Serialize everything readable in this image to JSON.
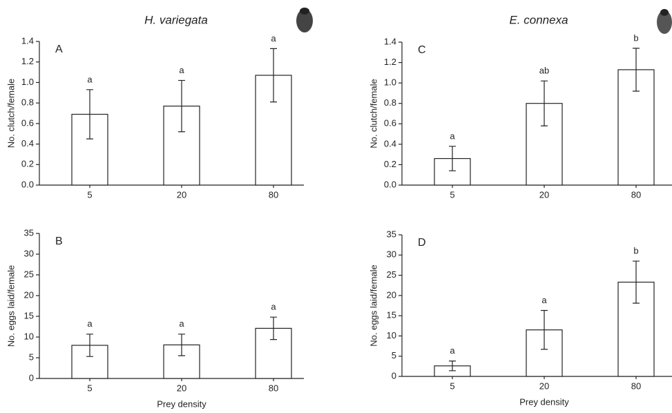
{
  "chart_data": [
    {
      "type": "bar",
      "panel": "A",
      "title": "H. variegata",
      "y_label": "No. clutch/female",
      "categories": [
        "5",
        "20",
        "80"
      ],
      "values": [
        0.69,
        0.77,
        1.07
      ],
      "errors": [
        0.24,
        0.25,
        0.26
      ],
      "annotations": [
        "a",
        "a",
        "a"
      ],
      "color": "#ffffff",
      "ylim": [
        0,
        1.4
      ],
      "yticks": [
        {
          "value": 0,
          "label": "0.0"
        },
        0.2,
        0.4,
        0.6,
        0.8,
        {
          "value": 1,
          "label": "1.0"
        },
        1.2,
        1.4
      ]
    },
    {
      "type": "bar",
      "panel": "B",
      "x_label": "Prey density",
      "y_label": "No. eggs laid/female",
      "categories": [
        "5",
        "20",
        "80"
      ],
      "values": [
        8.0,
        8.1,
        12.1
      ],
      "errors": [
        2.7,
        2.6,
        2.7
      ],
      "annotations": [
        "a",
        "a",
        "a"
      ],
      "color": "#ffffff",
      "ylim": [
        0,
        35
      ],
      "yticks": [
        0,
        5,
        10,
        15,
        20,
        25,
        30,
        35
      ]
    },
    {
      "type": "bar",
      "panel": "C",
      "title": "E. connexa",
      "y_label": "No. clutch/female",
      "categories": [
        "5",
        "20",
        "80"
      ],
      "values": [
        0.26,
        0.8,
        1.13
      ],
      "errors": [
        0.12,
        0.22,
        0.21
      ],
      "annotations": [
        "a",
        "ab",
        "b"
      ],
      "color": "#ffffff",
      "ylim": [
        0,
        1.4
      ],
      "yticks": [
        {
          "value": 0,
          "label": "0.0"
        },
        0.2,
        0.4,
        0.6,
        0.8,
        {
          "value": 1,
          "label": "1.0"
        },
        1.2,
        1.4
      ]
    },
    {
      "type": "bar",
      "panel": "D",
      "x_label": "Prey density",
      "y_label": "No. eggs laid/female",
      "categories": [
        "5",
        "20",
        "80"
      ],
      "values": [
        2.6,
        11.5,
        23.3
      ],
      "errors": [
        1.2,
        4.8,
        5.2
      ],
      "annotations": [
        "a",
        "a",
        "b"
      ],
      "color": "#ffffff",
      "ylim": [
        0,
        35
      ],
      "yticks": [
        0,
        5,
        10,
        15,
        20,
        25,
        30,
        35
      ]
    }
  ]
}
